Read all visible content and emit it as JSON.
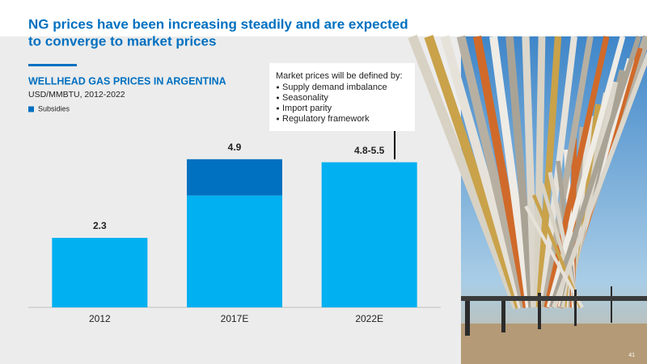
{
  "header": {
    "title_lines": [
      "NG prices have been increasing steadily and are expected",
      "to converge to market prices"
    ]
  },
  "chart_data": {
    "type": "stacked-bar",
    "title": "WELLHEAD GAS PRICES IN ARGENTINA",
    "subtitle": "USD/MMBTU, 2012-2022",
    "categories": [
      "2012",
      "2017E",
      "2022E"
    ],
    "series": [
      {
        "color": "#00b0f0",
        "values": [
          2.3,
          3.7,
          4.8
        ]
      },
      {
        "name": "Subsidies",
        "color": "#0070c0",
        "values": [
          null,
          1.2,
          null
        ]
      }
    ],
    "total_labels": [
      "2.3",
      "4.9",
      "4.8-5.5"
    ],
    "ylim": [
      0,
      6.1
    ]
  },
  "callout": {
    "heading": "Market prices will be defined by:",
    "items": [
      "Supply demand imbalance",
      "Seasonality",
      "Import parity",
      "Regulatory framework"
    ]
  },
  "page_number": "41"
}
